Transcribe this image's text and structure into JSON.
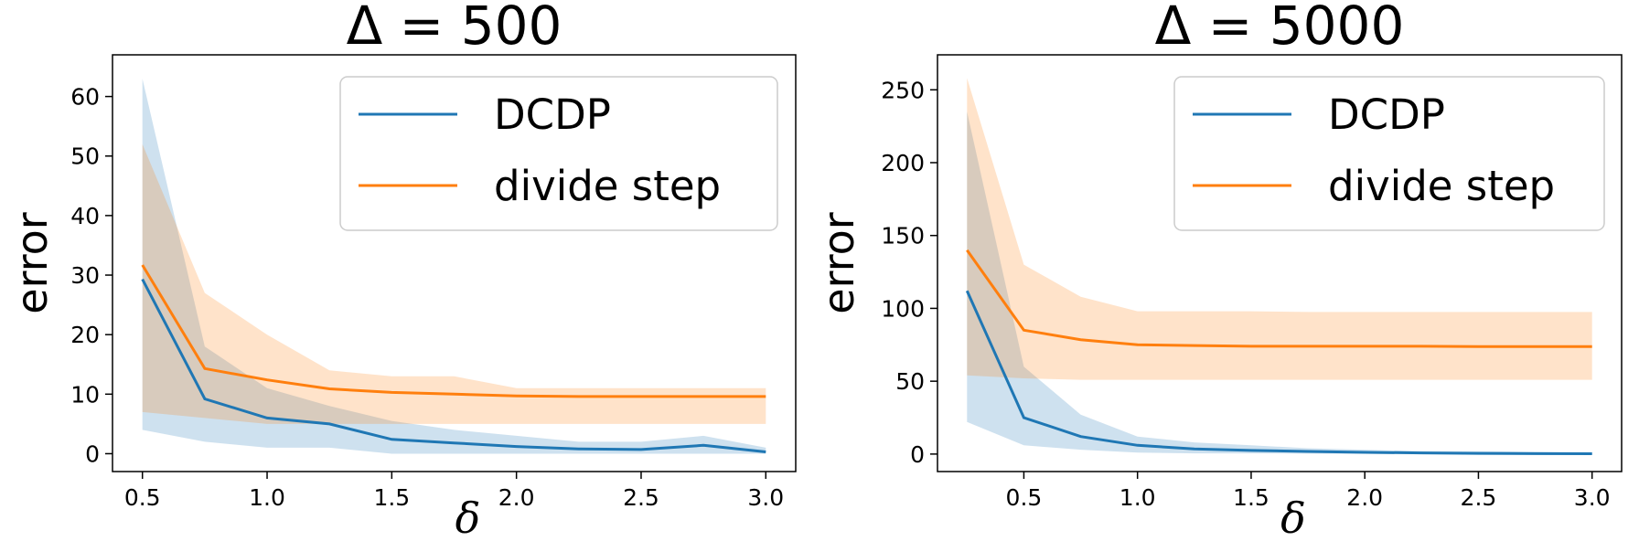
{
  "chart_data": [
    {
      "type": "line",
      "title": "Δ = 500",
      "xlabel": "δ",
      "ylabel": "error",
      "xlim": [
        0.38,
        3.12
      ],
      "ylim": [
        -3,
        67
      ],
      "xticks": [
        0.5,
        1.0,
        1.5,
        2.0,
        2.5,
        3.0
      ],
      "xtick_labels": [
        "0.5",
        "1.0",
        "1.5",
        "2.0",
        "2.5",
        "3.0"
      ],
      "yticks": [
        0,
        10,
        20,
        30,
        40,
        50,
        60
      ],
      "ytick_labels": [
        "0",
        "10",
        "20",
        "30",
        "40",
        "50",
        "60"
      ],
      "grid": false,
      "legend": "top-right",
      "x": [
        0.5,
        0.75,
        1.0,
        1.25,
        1.5,
        1.75,
        2.0,
        2.25,
        2.5,
        2.75,
        3.0
      ],
      "series": [
        {
          "name": "DCDP",
          "color": "#1f77b4",
          "values": [
            29.3,
            9.2,
            6.0,
            5.0,
            2.4,
            1.8,
            1.2,
            0.8,
            0.7,
            1.4,
            0.3
          ],
          "band_upper": [
            63.0,
            18.0,
            11.0,
            8.0,
            5.5,
            4.0,
            3.0,
            2.0,
            2.0,
            3.0,
            1.0
          ],
          "band_lower": [
            4.0,
            2.0,
            1.0,
            1.0,
            0.0,
            0.0,
            0.0,
            0.0,
            0.0,
            0.0,
            0.0
          ]
        },
        {
          "name": "divide step",
          "color": "#ff7f0e",
          "values": [
            31.7,
            14.3,
            12.4,
            10.9,
            10.3,
            10.0,
            9.7,
            9.6,
            9.6,
            9.6,
            9.6
          ],
          "band_upper": [
            52.0,
            27.0,
            20.0,
            14.0,
            13.0,
            13.0,
            11.0,
            11.0,
            11.0,
            11.0,
            11.0
          ],
          "band_lower": [
            7.0,
            6.0,
            5.0,
            5.0,
            5.0,
            5.0,
            5.0,
            5.0,
            5.0,
            5.0,
            5.0
          ]
        }
      ]
    },
    {
      "type": "line",
      "title": "Δ = 5000",
      "xlabel": "δ",
      "ylabel": "error",
      "xlim": [
        0.12,
        3.13
      ],
      "ylim": [
        -12,
        274
      ],
      "xticks": [
        0.5,
        1.0,
        1.5,
        2.0,
        2.5,
        3.0
      ],
      "xtick_labels": [
        "0.5",
        "1.0",
        "1.5",
        "2.0",
        "2.5",
        "3.0"
      ],
      "yticks": [
        0,
        50,
        100,
        150,
        200,
        250
      ],
      "ytick_labels": [
        "0",
        "50",
        "100",
        "150",
        "200",
        "250"
      ],
      "grid": false,
      "legend": "top-right",
      "x": [
        0.25,
        0.5,
        0.75,
        1.0,
        1.25,
        1.5,
        1.75,
        2.0,
        2.25,
        2.5,
        2.75,
        3.0
      ],
      "series": [
        {
          "name": "DCDP",
          "color": "#1f77b4",
          "values": [
            112.0,
            25.0,
            12.0,
            6.0,
            3.5,
            2.5,
            1.8,
            1.2,
            0.8,
            0.5,
            0.3,
            0.2
          ],
          "band_upper": [
            235.0,
            60.0,
            27.0,
            12.0,
            8.0,
            6.0,
            4.0,
            3.0,
            2.0,
            2.0,
            1.5,
            1.0
          ],
          "band_lower": [
            22.0,
            6.0,
            3.0,
            1.0,
            0.5,
            0.5,
            0.3,
            0.2,
            0.1,
            0.1,
            0.1,
            0.0
          ]
        },
        {
          "name": "divide step",
          "color": "#ff7f0e",
          "values": [
            140.0,
            85.0,
            78.5,
            75.0,
            74.5,
            74.0,
            74.0,
            74.0,
            74.0,
            73.8,
            73.8,
            73.8
          ],
          "band_upper": [
            258.0,
            130.0,
            108.0,
            98.0,
            98.0,
            98.0,
            97.5,
            97.5,
            97.5,
            97.5,
            97.5,
            97.5
          ],
          "band_lower": [
            54.0,
            52.0,
            51.0,
            51.0,
            51.0,
            51.0,
            51.0,
            51.0,
            51.0,
            51.0,
            51.0,
            51.0
          ]
        }
      ]
    }
  ]
}
